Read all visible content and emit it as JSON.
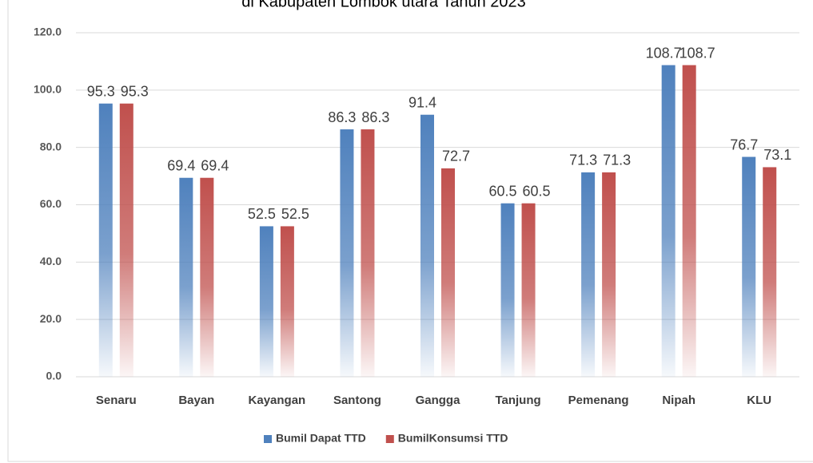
{
  "chart_data": {
    "type": "bar",
    "title": "di Kabupaten Lombok utara Tahun 2023",
    "categories": [
      "Senaru",
      "Bayan",
      "Kayangan",
      "Santong",
      "Gangga",
      "Tanjung",
      "Pemenang",
      "Nipah",
      "KLU"
    ],
    "series": [
      {
        "name": "Bumil Dapat TTD",
        "color": "#4f81bd",
        "values": [
          95.3,
          69.4,
          52.5,
          86.3,
          91.4,
          60.5,
          71.3,
          108.7,
          76.7
        ]
      },
      {
        "name": "BumilKonsumsi TTD",
        "color": "#c0504d",
        "values": [
          95.3,
          69.4,
          52.5,
          86.3,
          72.7,
          60.5,
          71.3,
          108.7,
          73.1
        ]
      }
    ],
    "ylim": [
      0,
      120
    ],
    "yticks": [
      {
        "value": 0,
        "label": "0.0"
      },
      {
        "value": 20,
        "label": "20.0"
      },
      {
        "value": 40,
        "label": "40.0"
      },
      {
        "value": 60,
        "label": "60.0"
      },
      {
        "value": 80,
        "label": "80.0"
      },
      {
        "value": 100,
        "label": "100.0"
      },
      {
        "value": 120,
        "label": "120.0"
      }
    ],
    "grid": true,
    "legend": "bottom"
  }
}
